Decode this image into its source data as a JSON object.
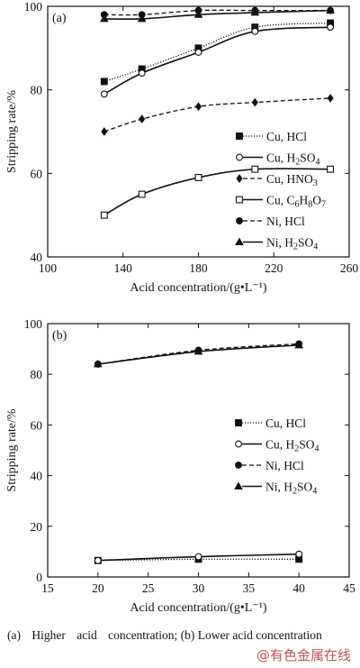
{
  "caption": {
    "part_a": "(a) Higher acid concentration;",
    "part_b": "(b) Lower acid concentration"
  },
  "watermark": "@有色金属在线",
  "chart_data": [
    {
      "type": "line",
      "panel_label": "(a)",
      "xlabel": "Acid concentration/(g•L⁻¹)",
      "ylabel": "Stripping rate/%",
      "xlim": [
        100,
        260
      ],
      "ylim": [
        40,
        100
      ],
      "xticks": [
        100,
        140,
        180,
        220,
        260
      ],
      "yticks": [
        40,
        60,
        80,
        100
      ],
      "x": [
        130,
        150,
        180,
        210,
        250
      ],
      "grid": false,
      "legend_position": "right",
      "series": [
        {
          "name": "Cu, HCl",
          "marker": "square-filled",
          "line": "dotted",
          "values": [
            82,
            85,
            90,
            95,
            96
          ]
        },
        {
          "name": "Cu, H₂SO₄",
          "marker": "circle-open",
          "line": "solid",
          "values": [
            79,
            84,
            89,
            94,
            95
          ]
        },
        {
          "name": "Cu, HNO₃",
          "marker": "diamond-filled",
          "line": "dashed",
          "values": [
            70,
            73,
            76,
            77,
            78
          ]
        },
        {
          "name": "Cu, C₆H₈O₇",
          "marker": "square-open",
          "line": "solid",
          "values": [
            50,
            55,
            59,
            61,
            61
          ]
        },
        {
          "name": "Ni, HCl",
          "marker": "circle-filled",
          "line": "dashed",
          "values": [
            98,
            98,
            99,
            99,
            99
          ]
        },
        {
          "name": "Ni, H₂SO₄",
          "marker": "triangle-filled",
          "line": "solid",
          "values": [
            97,
            97,
            98,
            98.5,
            99
          ]
        }
      ]
    },
    {
      "type": "line",
      "panel_label": "(b)",
      "xlabel": "Acid concentration/(g•L⁻¹)",
      "ylabel": "Stripping rate/%",
      "xlim": [
        15,
        45
      ],
      "ylim": [
        0,
        100
      ],
      "xticks": [
        15,
        20,
        25,
        30,
        35,
        40,
        45
      ],
      "yticks": [
        0,
        20,
        40,
        60,
        80,
        100
      ],
      "x": [
        20,
        30,
        40
      ],
      "grid": false,
      "legend_position": "right",
      "series": [
        {
          "name": "Cu, HCl",
          "marker": "square-filled",
          "line": "dotted",
          "values": [
            6.5,
            7,
            7
          ]
        },
        {
          "name": "Cu, H₂SO₄",
          "marker": "circle-open",
          "line": "solid",
          "values": [
            6.5,
            8,
            9
          ]
        },
        {
          "name": "Ni, HCl",
          "marker": "circle-filled",
          "line": "dashed",
          "values": [
            84,
            89.5,
            92
          ]
        },
        {
          "name": "Ni, H₂SO₄",
          "marker": "triangle-filled",
          "line": "solid",
          "values": [
            84,
            89,
            91.5
          ]
        }
      ]
    }
  ]
}
